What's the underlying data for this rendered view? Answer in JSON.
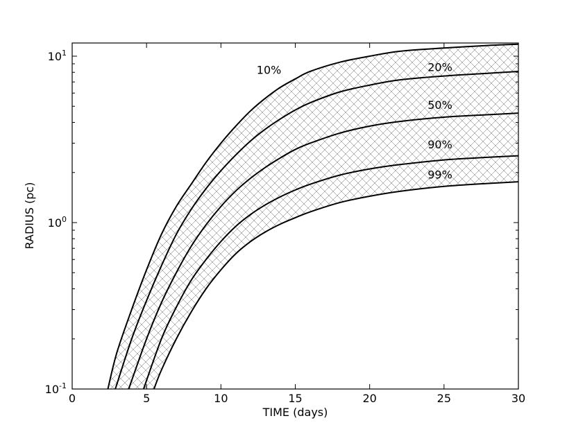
{
  "chart_data": {
    "type": "line",
    "xlabel": "TIME (days)",
    "ylabel": "RADIUS (pc)",
    "xlim": [
      0,
      30
    ],
    "ylim": [
      0.1,
      12
    ],
    "y_scale": "log",
    "grid": false,
    "legend": "none",
    "fill_between_series": "cross-hatched",
    "x_ticks": [
      0,
      5,
      10,
      15,
      20,
      25,
      30
    ],
    "x_tick_labels": [
      "0",
      "5",
      "10",
      "15",
      "20",
      "25",
      "30"
    ],
    "y_ticks": [
      0.1,
      1,
      10
    ],
    "y_tick_labels": [
      {
        "base": "10",
        "exp": "-1"
      },
      {
        "base": "10",
        "exp": "0"
      },
      {
        "base": "10",
        "exp": "1"
      }
    ],
    "series": [
      {
        "name": "10%",
        "x": [
          2.4,
          3,
          4,
          5,
          6,
          7,
          8,
          9,
          10,
          11,
          12,
          13,
          14,
          15,
          16,
          18,
          20,
          22,
          25,
          28,
          30
        ],
        "y": [
          0.1,
          0.165,
          0.3,
          0.52,
          0.85,
          1.25,
          1.7,
          2.3,
          3.0,
          3.8,
          4.7,
          5.6,
          6.5,
          7.3,
          8.1,
          9.2,
          10.0,
          10.7,
          11.2,
          11.6,
          11.8
        ]
      },
      {
        "name": "20%",
        "x": [
          2.9,
          4,
          5,
          6,
          7,
          8,
          9,
          10,
          11,
          12,
          13,
          14,
          15,
          16,
          18,
          20,
          22,
          25,
          28,
          30
        ],
        "y": [
          0.1,
          0.2,
          0.34,
          0.55,
          0.85,
          1.2,
          1.6,
          2.05,
          2.55,
          3.1,
          3.65,
          4.2,
          4.75,
          5.25,
          6.1,
          6.7,
          7.2,
          7.6,
          7.9,
          8.1
        ]
      },
      {
        "name": "50%",
        "x": [
          3.8,
          5,
          6,
          7,
          8,
          9,
          10,
          11,
          12,
          13,
          14,
          15,
          16,
          18,
          20,
          22,
          25,
          28,
          30
        ],
        "y": [
          0.1,
          0.2,
          0.33,
          0.5,
          0.72,
          0.97,
          1.25,
          1.55,
          1.85,
          2.15,
          2.45,
          2.75,
          3.0,
          3.45,
          3.8,
          4.05,
          4.3,
          4.45,
          4.55
        ]
      },
      {
        "name": "90%",
        "x": [
          4.8,
          6,
          7,
          8,
          9,
          10,
          11,
          12,
          13,
          14,
          15,
          16,
          18,
          20,
          22,
          25,
          28,
          30
        ],
        "y": [
          0.1,
          0.2,
          0.31,
          0.45,
          0.6,
          0.77,
          0.95,
          1.12,
          1.28,
          1.43,
          1.57,
          1.7,
          1.93,
          2.1,
          2.23,
          2.38,
          2.47,
          2.52
        ]
      },
      {
        "name": "99%",
        "x": [
          5.5,
          6,
          7,
          8,
          9,
          10,
          11,
          12,
          13,
          14,
          15,
          16,
          18,
          20,
          22,
          25,
          28,
          30
        ],
        "y": [
          0.1,
          0.13,
          0.2,
          0.29,
          0.4,
          0.52,
          0.65,
          0.77,
          0.88,
          0.98,
          1.07,
          1.16,
          1.32,
          1.44,
          1.54,
          1.65,
          1.72,
          1.76
        ]
      }
    ],
    "annotations": [
      {
        "text": "10%",
        "x": 12.4,
        "y": 8.3
      },
      {
        "text": "20%",
        "x": 23.9,
        "y": 8.6
      },
      {
        "text": "50%",
        "x": 23.9,
        "y": 5.1
      },
      {
        "text": "90%",
        "x": 23.9,
        "y": 2.95
      },
      {
        "text": "99%",
        "x": 23.9,
        "y": 1.95
      }
    ]
  }
}
